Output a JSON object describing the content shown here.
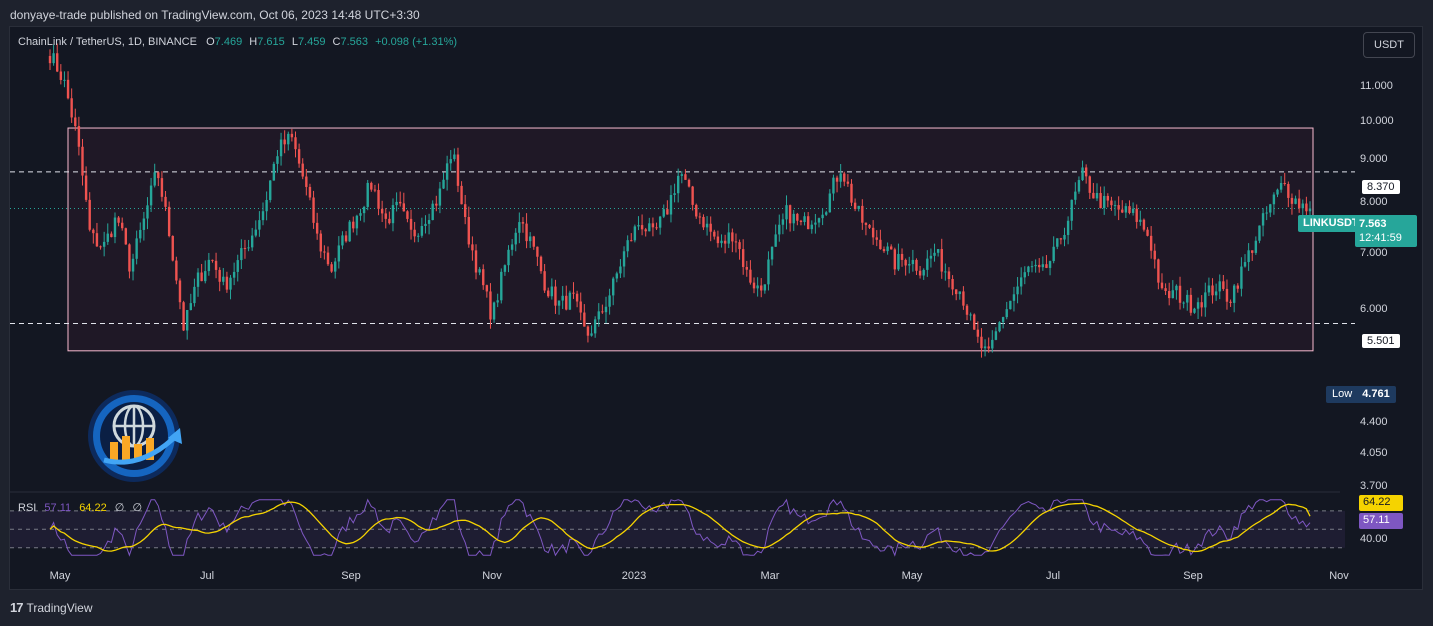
{
  "publisher": "donyaye-trade published on TradingView.com, Oct 06, 2023 14:48 UTC+3:30",
  "symbol": {
    "name": "ChainLink / TetherUS, 1D, BINANCE",
    "open_label": "O",
    "open": "7.469",
    "high_label": "H",
    "high": "7.615",
    "low_label": "L",
    "low": "7.459",
    "close_label": "C",
    "close": "7.563",
    "change": "+0.098 (+1.31%)"
  },
  "currency": "USDT",
  "price_axis": [
    "11.000",
    "10.000",
    "9.000",
    "8.000",
    "7.000",
    "6.000",
    "4.400",
    "4.050",
    "3.700"
  ],
  "time_axis": [
    "May",
    "Jul",
    "Sep",
    "Nov",
    "2023",
    "Mar",
    "May",
    "Jul",
    "Sep",
    "Nov"
  ],
  "levels": {
    "upper": "8.370",
    "lower": "5.501"
  },
  "last_price": {
    "ticker": "LINKUSDT",
    "price": "7.563",
    "countdown": "12:41:59"
  },
  "low_marker": {
    "label": "Low",
    "value": "4.761"
  },
  "rsi": {
    "name": "RSI",
    "value": "57.11",
    "ma": "64.22",
    "extra1": "∅",
    "extra2": "∅",
    "axis_label": "40.00"
  },
  "footer": {
    "brand": "TradingView"
  },
  "colors": {
    "background": "#131722",
    "up": "#26a69a",
    "down": "#ef5350",
    "rsi_line": "#7e57c2",
    "rsi_ma": "#f5d300",
    "range_box": "#f8bbd0"
  },
  "chart_data": {
    "type": "candlestick",
    "y_scale": "log",
    "ylim": [
      3.45,
      12.5
    ],
    "range_box": {
      "top_price": 9.45,
      "bottom_price": 5.1
    },
    "close_path": [
      11.6,
      10.8,
      9.2,
      7.0,
      6.8,
      7.4,
      6.4,
      7.3,
      8.4,
      6.9,
      5.4,
      6.2,
      6.6,
      6.1,
      6.5,
      7.0,
      7.6,
      8.9,
      9.2,
      8.1,
      6.9,
      6.4,
      7.0,
      7.5,
      8.1,
      7.3,
      7.6,
      7.0,
      7.4,
      7.8,
      8.9,
      7.2,
      6.3,
      5.6,
      6.5,
      7.4,
      6.8,
      6.1,
      5.8,
      5.9,
      5.3,
      5.6,
      6.1,
      6.8,
      7.3,
      7.0,
      7.5,
      8.4,
      7.6,
      7.2,
      6.8,
      7.1,
      6.3,
      6.0,
      6.8,
      7.5,
      7.2,
      7.4,
      7.7,
      8.5,
      7.6,
      7.1,
      6.9,
      6.5,
      6.6,
      6.4,
      6.7,
      6.3,
      6.0,
      5.3,
      5.0,
      5.6,
      6.0,
      6.4,
      6.3,
      6.7,
      7.4,
      8.3,
      7.8,
      7.6,
      7.5,
      7.4,
      7.0,
      5.9,
      6.0,
      5.8,
      5.9,
      6.1,
      5.9,
      6.4,
      7.0,
      7.6,
      8.1,
      7.7,
      7.563
    ]
  }
}
